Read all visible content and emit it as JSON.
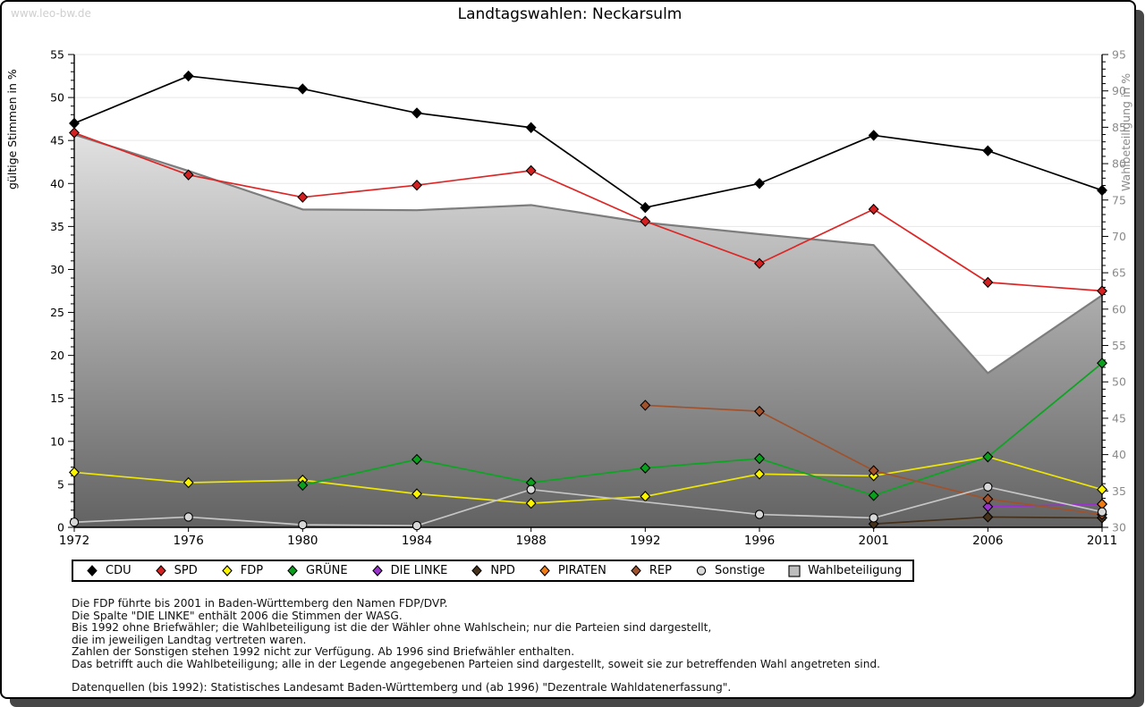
{
  "page": {
    "watermark": "www.leo-bw.de",
    "title": "Landtagswahlen: Neckarsulm"
  },
  "footnotes": {
    "lines": [
      "Die FDP führte bis 2001 in Baden-Württemberg den Namen FDP/DVP.",
      "Die Spalte \"DIE LINKE\" enthält 2006 die Stimmen der WASG.",
      "Bis 1992 ohne Briefwähler; die Wahlbeteiligung ist die der Wähler ohne Wahlschein; nur die Parteien sind dargestellt,",
      "die im jeweiligen Landtag vertreten waren.",
      "Zahlen der Sonstigen stehen 1992 nicht zur Verfügung. Ab 1996 sind Briefwähler enthalten.",
      "Das betrifft auch die Wahlbeteiligung; alle in der Legende angegebenen Parteien sind dargestellt, soweit sie zur betreffenden Wahl angetreten sind."
    ],
    "source": "Datenquellen (bis 1992): Statistisches Landesamt Baden-Württemberg und (ab 1996) \"Dezentrale Wahldatenerfassung\"."
  },
  "chart_data": {
    "type": "line",
    "title": "Landtagswahlen: Neckarsulm",
    "categories": [
      1972,
      1976,
      1980,
      1984,
      1988,
      1992,
      1996,
      2001,
      2006,
      2011
    ],
    "ylabel_left": "gültige Stimmen in %",
    "ylabel_right": "Wahlbeteiligung in %",
    "ylim_left": [
      0,
      55
    ],
    "ylim_right": [
      30,
      95
    ],
    "grid": "horizontal every 5 units",
    "legend_position": "below",
    "colors": {
      "grid": "#e7e7e7",
      "axis": "#000000",
      "right_axis_text": "#8a8a8a",
      "area_edge": "#7d7d7d",
      "area_gradient_top": "#fbfbfb",
      "area_gradient_bottom": "#626262"
    },
    "series": [
      {
        "name": "CDU",
        "color": "#000000",
        "marker_fill": "#000000",
        "marker": "diamond",
        "axis": "left",
        "values": [
          47.0,
          52.5,
          51.0,
          48.2,
          46.5,
          37.2,
          40.0,
          45.6,
          43.8,
          39.2
        ]
      },
      {
        "name": "SPD",
        "color": "#dd2626",
        "marker_fill": "#d42020",
        "marker": "diamond",
        "axis": "left",
        "values": [
          45.9,
          41.0,
          38.4,
          39.8,
          41.5,
          35.6,
          30.7,
          37.0,
          28.5,
          27.5
        ]
      },
      {
        "name": "FDP",
        "color": "#ede607",
        "marker_fill": "#fbf400",
        "marker": "diamond",
        "axis": "left",
        "values": [
          6.4,
          5.2,
          5.5,
          3.9,
          2.8,
          3.6,
          6.2,
          6.0,
          8.2,
          4.4
        ]
      },
      {
        "name": "GRÜNE",
        "color": "#0ba522",
        "marker_fill": "#0aa01e",
        "marker": "diamond",
        "axis": "left",
        "values": [
          null,
          null,
          4.9,
          7.9,
          5.2,
          6.9,
          8.0,
          3.7,
          8.2,
          19.1
        ]
      },
      {
        "name": "DIE LINKE",
        "color": "#9933cc",
        "marker_fill": "#9933cc",
        "marker": "diamond",
        "axis": "left",
        "values": [
          null,
          null,
          null,
          null,
          null,
          null,
          null,
          null,
          2.4,
          2.7
        ]
      },
      {
        "name": "NPD",
        "color": "#46311a",
        "marker_fill": "#46311a",
        "marker": "diamond",
        "axis": "left",
        "values": [
          null,
          null,
          null,
          null,
          null,
          null,
          null,
          0.4,
          1.2,
          1.1
        ]
      },
      {
        "name": "PIRATEN",
        "color": "#ee7c12",
        "marker_fill": "#ee7c12",
        "marker": "diamond",
        "axis": "left",
        "values": [
          null,
          null,
          null,
          null,
          null,
          null,
          null,
          null,
          null,
          2.7
        ]
      },
      {
        "name": "REP",
        "color": "#a0522d",
        "marker_fill": "#a0522d",
        "marker": "diamond",
        "axis": "left",
        "values": [
          null,
          null,
          null,
          null,
          null,
          14.2,
          13.5,
          6.6,
          3.3,
          1.5
        ]
      },
      {
        "name": "Sonstige",
        "color": "#c6c6c6",
        "marker_fill": "#d8d8d8",
        "marker": "circle",
        "axis": "left",
        "bridge_gaps": true,
        "values": [
          0.6,
          1.2,
          0.3,
          0.2,
          4.4,
          null,
          1.5,
          1.1,
          4.7,
          1.8
        ]
      },
      {
        "name": "Wahlbeteiligung",
        "type": "area",
        "marker": "square",
        "axis": "right",
        "values": [
          84.0,
          79.0,
          73.7,
          73.6,
          74.3,
          71.9,
          70.3,
          68.8,
          51.2,
          61.9
        ]
      }
    ]
  }
}
